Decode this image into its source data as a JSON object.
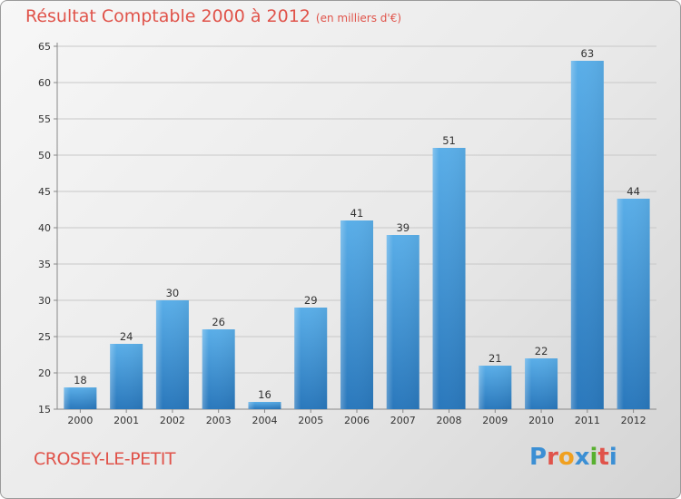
{
  "header": {
    "title": "Résultat Comptable 2000 à 2012",
    "subtitle": "(en milliers d'€)"
  },
  "footer": {
    "commune": "CROSEY-LE-PETIT",
    "logo_text": "Proxiti",
    "logo_colors": [
      "#3b8fd4",
      "#e0534a",
      "#f0a020",
      "#3b8fd4",
      "#58b030",
      "#e0534a",
      "#3b8fd4"
    ]
  },
  "chart_data": {
    "type": "bar",
    "title": "Résultat Comptable 2000 à 2012",
    "xlabel": "",
    "ylabel": "",
    "categories": [
      "2000",
      "2001",
      "2002",
      "2003",
      "2004",
      "2005",
      "2006",
      "2007",
      "2008",
      "2009",
      "2010",
      "2011",
      "2012"
    ],
    "values": [
      18,
      24,
      30,
      26,
      16,
      29,
      41,
      39,
      51,
      21,
      22,
      63,
      44
    ],
    "ylim": [
      15,
      65
    ],
    "yticks": [
      15,
      20,
      25,
      30,
      35,
      40,
      45,
      50,
      55,
      60,
      65
    ],
    "grid": true,
    "bar_color": "#4a9fe0",
    "grid_color": "#c8c8c8"
  }
}
